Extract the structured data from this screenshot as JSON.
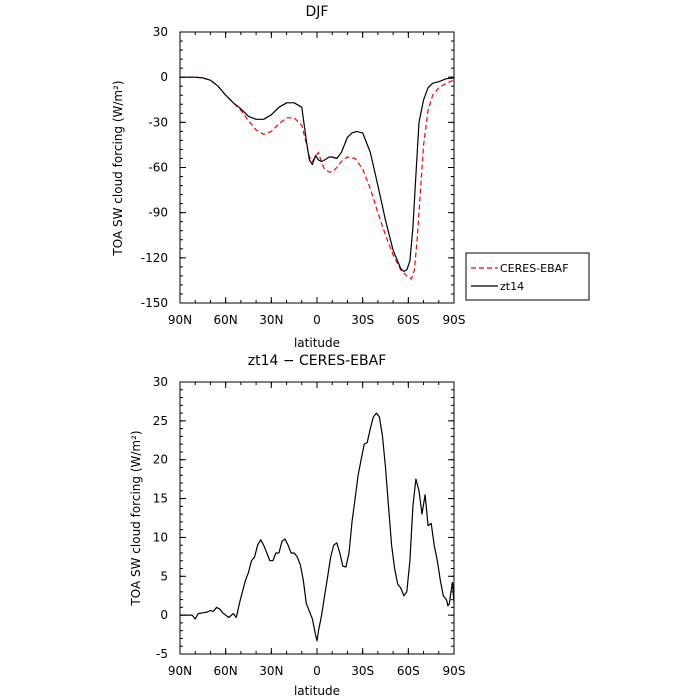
{
  "chart_data": [
    {
      "type": "line",
      "title": "DJF",
      "xlabel": "latitude",
      "ylabel": "TOA SW cloud forcing (W/m²)",
      "x_ticks": [
        "90N",
        "60N",
        "30N",
        "0",
        "30S",
        "60S",
        "90S"
      ],
      "y_ticks": [
        "30",
        "0",
        "-30",
        "-60",
        "-90",
        "-120",
        "-150"
      ],
      "xlim": [
        -90,
        90
      ],
      "ylim": [
        -150,
        30
      ],
      "x_note": "x is latitude in degrees; negative = N, positive = S",
      "legend_position": "right",
      "series": [
        {
          "name": "CERES-EBAF",
          "color": "#ff0000",
          "dashed": true,
          "x": [
            -90,
            -85,
            -80,
            -75,
            -70,
            -65,
            -60,
            -55,
            -50,
            -45,
            -40,
            -35,
            -30,
            -25,
            -20,
            -15,
            -10,
            -7,
            -5,
            -3,
            -1,
            1,
            3,
            5,
            8,
            10,
            13,
            16,
            20,
            25,
            30,
            35,
            40,
            45,
            50,
            55,
            58,
            60,
            62,
            64,
            66,
            68,
            70,
            73,
            76,
            80,
            85,
            90
          ],
          "y": [
            0,
            0,
            0,
            -0.5,
            -2,
            -6,
            -12,
            -17,
            -22,
            -29,
            -35,
            -38,
            -36,
            -31,
            -27,
            -27,
            -32,
            -44,
            -53,
            -56,
            -53,
            -50,
            -57,
            -61,
            -63,
            -63,
            -60,
            -56,
            -53,
            -54,
            -61,
            -74,
            -90,
            -105,
            -118,
            -128,
            -131,
            -133,
            -134,
            -128,
            -105,
            -75,
            -45,
            -22,
            -12,
            -7,
            -4,
            -2
          ]
        },
        {
          "name": "zt14",
          "color": "#000000",
          "dashed": false,
          "x": [
            -90,
            -85,
            -80,
            -75,
            -70,
            -65,
            -60,
            -55,
            -50,
            -45,
            -40,
            -35,
            -30,
            -25,
            -20,
            -15,
            -10,
            -7,
            -5,
            -3,
            -1,
            1,
            3,
            5,
            8,
            10,
            13,
            16,
            20,
            23,
            26,
            30,
            35,
            40,
            45,
            50,
            55,
            57,
            59,
            61,
            63,
            65,
            67,
            70,
            73,
            76,
            80,
            85,
            90
          ],
          "y": [
            0,
            0,
            0,
            -0.5,
            -2,
            -6,
            -12,
            -17,
            -21,
            -26,
            -28,
            -28,
            -25,
            -20,
            -17,
            -17,
            -20,
            -42,
            -55,
            -58,
            -52,
            -55,
            -56,
            -55,
            -53,
            -53,
            -54,
            -50,
            -40,
            -37,
            -36,
            -37,
            -50,
            -72,
            -95,
            -115,
            -127,
            -129,
            -128,
            -122,
            -100,
            -65,
            -30,
            -15,
            -7,
            -4,
            -3,
            -1,
            -0.5
          ]
        }
      ]
    },
    {
      "type": "line",
      "title": "zt14 − CERES-EBAF",
      "xlabel": "latitude",
      "ylabel": "TOA SW cloud forcing (W/m²)",
      "x_ticks": [
        "90N",
        "60N",
        "30N",
        "0",
        "30S",
        "60S",
        "90S"
      ],
      "y_ticks": [
        "30",
        "25",
        "20",
        "15",
        "10",
        "5",
        "0",
        "-5"
      ],
      "xlim": [
        -90,
        90
      ],
      "ylim": [
        -5,
        30
      ],
      "x_note": "x is latitude in degrees; negative = N, positive = S",
      "series": [
        {
          "color": "#000000",
          "dashed": false,
          "x": [
            -90,
            -85,
            -82,
            -80,
            -78,
            -75,
            -72,
            -70,
            -68,
            -66,
            -64,
            -62,
            -60,
            -58,
            -55,
            -53,
            -51,
            -49,
            -47,
            -45,
            -43,
            -41,
            -39,
            -37,
            -35,
            -33,
            -31,
            -29,
            -27,
            -25,
            -23,
            -21,
            -19,
            -17,
            -15,
            -13,
            -11,
            -9,
            -7,
            -5,
            -3,
            -1,
            0,
            1,
            3,
            5,
            7,
            9,
            11,
            13,
            15,
            17,
            19,
            21,
            23,
            25,
            27,
            29,
            31,
            33,
            35,
            37,
            39,
            41,
            43,
            45,
            47,
            49,
            51,
            53,
            55,
            57,
            59,
            61,
            63,
            65,
            67,
            69,
            71,
            73,
            75,
            77,
            79,
            81,
            83,
            85,
            86,
            87,
            88,
            89,
            90
          ],
          "y": [
            0,
            0,
            0,
            -0.5,
            0.2,
            0.3,
            0.4,
            0.6,
            0.5,
            1.0,
            0.8,
            0.3,
            0,
            -0.3,
            0.2,
            -0.3,
            1.5,
            3,
            4.5,
            5.5,
            7,
            7.5,
            9,
            9.7,
            9,
            8,
            7,
            7,
            8,
            8,
            9.5,
            9.8,
            9,
            8,
            8,
            7.5,
            6.5,
            4.5,
            1.5,
            0.5,
            -0.5,
            -2.5,
            -3.3,
            -2,
            0,
            2.5,
            5,
            7.5,
            9,
            9.3,
            8,
            6.3,
            6.2,
            8,
            12,
            15,
            18,
            20,
            22,
            22.2,
            24,
            25.5,
            26,
            25.5,
            23,
            19,
            14,
            9,
            6,
            4,
            3.5,
            2.5,
            3,
            7,
            14,
            17.5,
            16,
            13,
            15.5,
            11.5,
            11.8,
            9,
            7,
            4.5,
            2.5,
            2,
            1.2,
            1.5,
            3,
            4.2,
            1.5
          ]
        }
      ]
    }
  ]
}
